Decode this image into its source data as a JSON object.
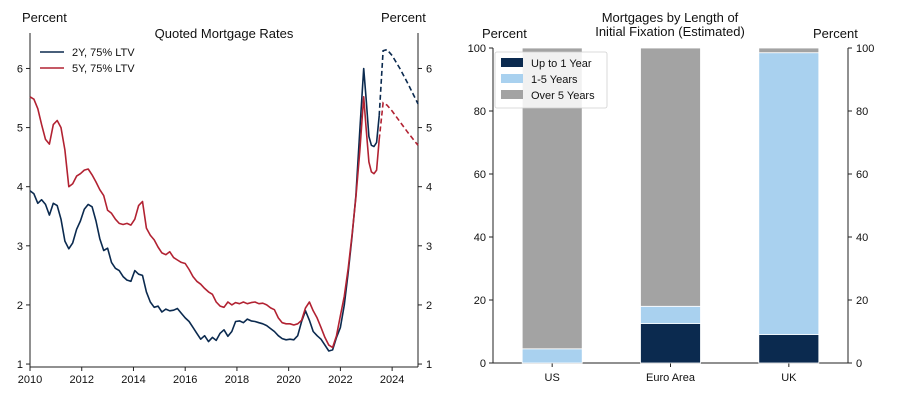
{
  "chart_data": [
    {
      "type": "line",
      "title": "Quoted Mortgage Rates",
      "ylabel_left": "Percent",
      "ylabel_right": "Percent",
      "xlim": [
        2010,
        2025
      ],
      "ylim": [
        0.95,
        6.6
      ],
      "xticks": [
        2010,
        2012,
        2014,
        2016,
        2018,
        2020,
        2022,
        2024
      ],
      "yticks": [
        1,
        2,
        3,
        4,
        5,
        6
      ],
      "legend_placement": "top-left",
      "series": [
        {
          "name": "2Y, 75% LTV",
          "color": "#0b2a4f",
          "x": [
            2010.0,
            2010.15,
            2010.3,
            2010.45,
            2010.6,
            2010.75,
            2010.9,
            2011.05,
            2011.2,
            2011.35,
            2011.5,
            2011.65,
            2011.8,
            2011.95,
            2012.1,
            2012.25,
            2012.4,
            2012.55,
            2012.7,
            2012.85,
            2013.0,
            2013.15,
            2013.3,
            2013.45,
            2013.6,
            2013.75,
            2013.9,
            2014.05,
            2014.2,
            2014.35,
            2014.5,
            2014.65,
            2014.8,
            2014.95,
            2015.1,
            2015.25,
            2015.4,
            2015.55,
            2015.7,
            2015.85,
            2016.0,
            2016.15,
            2016.3,
            2016.45,
            2016.6,
            2016.75,
            2016.9,
            2017.05,
            2017.2,
            2017.35,
            2017.5,
            2017.65,
            2017.8,
            2017.95,
            2018.1,
            2018.25,
            2018.4,
            2018.55,
            2018.7,
            2018.85,
            2019.0,
            2019.15,
            2019.3,
            2019.45,
            2019.6,
            2019.75,
            2019.9,
            2020.05,
            2020.2,
            2020.35,
            2020.5,
            2020.65,
            2020.8,
            2020.95,
            2021.1,
            2021.25,
            2021.4,
            2021.55,
            2021.7,
            2021.85,
            2022.0,
            2022.15,
            2022.3,
            2022.45,
            2022.6,
            2022.75,
            2022.9,
            2023.0,
            2023.1,
            2023.2,
            2023.3,
            2023.4,
            2023.5
          ],
          "values": [
            3.93,
            3.88,
            3.72,
            3.78,
            3.7,
            3.52,
            3.72,
            3.68,
            3.45,
            3.08,
            2.95,
            3.05,
            3.28,
            3.42,
            3.62,
            3.7,
            3.66,
            3.42,
            3.12,
            2.92,
            2.96,
            2.72,
            2.62,
            2.58,
            2.48,
            2.42,
            2.4,
            2.58,
            2.52,
            2.5,
            2.22,
            2.05,
            1.96,
            1.98,
            1.88,
            1.93,
            1.9,
            1.91,
            1.94,
            1.86,
            1.78,
            1.72,
            1.62,
            1.52,
            1.42,
            1.48,
            1.38,
            1.45,
            1.4,
            1.52,
            1.58,
            1.47,
            1.55,
            1.72,
            1.73,
            1.7,
            1.76,
            1.73,
            1.72,
            1.7,
            1.68,
            1.65,
            1.6,
            1.55,
            1.48,
            1.43,
            1.41,
            1.42,
            1.41,
            1.48,
            1.72,
            1.9,
            1.74,
            1.55,
            1.48,
            1.42,
            1.32,
            1.22,
            1.24,
            1.45,
            1.62,
            2.0,
            2.55,
            3.15,
            3.85,
            4.95,
            6.0,
            5.45,
            4.85,
            4.7,
            4.68,
            4.75,
            5.2
          ]
        },
        {
          "name": "5Y, 75% LTV",
          "color": "#b22232",
          "x": [
            2010.0,
            2010.15,
            2010.3,
            2010.45,
            2010.6,
            2010.75,
            2010.9,
            2011.05,
            2011.2,
            2011.35,
            2011.5,
            2011.65,
            2011.8,
            2011.95,
            2012.1,
            2012.25,
            2012.4,
            2012.55,
            2012.7,
            2012.85,
            2013.0,
            2013.15,
            2013.3,
            2013.45,
            2013.6,
            2013.75,
            2013.9,
            2014.05,
            2014.2,
            2014.35,
            2014.5,
            2014.65,
            2014.8,
            2014.95,
            2015.1,
            2015.25,
            2015.4,
            2015.55,
            2015.7,
            2015.85,
            2016.0,
            2016.15,
            2016.3,
            2016.45,
            2016.6,
            2016.75,
            2016.9,
            2017.05,
            2017.2,
            2017.35,
            2017.5,
            2017.65,
            2017.8,
            2017.95,
            2018.1,
            2018.25,
            2018.4,
            2018.55,
            2018.7,
            2018.85,
            2019.0,
            2019.15,
            2019.3,
            2019.45,
            2019.6,
            2019.75,
            2019.9,
            2020.05,
            2020.2,
            2020.35,
            2020.5,
            2020.65,
            2020.8,
            2020.95,
            2021.1,
            2021.25,
            2021.4,
            2021.55,
            2021.7,
            2021.85,
            2022.0,
            2022.15,
            2022.3,
            2022.45,
            2022.6,
            2022.75,
            2022.9,
            2023.0,
            2023.1,
            2023.2,
            2023.3,
            2023.4,
            2023.5
          ],
          "values": [
            5.52,
            5.48,
            5.32,
            5.05,
            4.8,
            4.72,
            5.05,
            5.12,
            5.0,
            4.62,
            4.0,
            4.05,
            4.18,
            4.22,
            4.28,
            4.3,
            4.2,
            4.08,
            3.95,
            3.85,
            3.6,
            3.55,
            3.45,
            3.38,
            3.36,
            3.38,
            3.35,
            3.45,
            3.68,
            3.75,
            3.3,
            3.18,
            3.1,
            2.98,
            2.88,
            2.85,
            2.9,
            2.8,
            2.76,
            2.72,
            2.7,
            2.6,
            2.48,
            2.4,
            2.35,
            2.28,
            2.22,
            2.18,
            2.05,
            1.98,
            1.96,
            2.05,
            2.0,
            2.04,
            2.02,
            2.05,
            2.02,
            2.04,
            2.05,
            2.02,
            2.03,
            2.0,
            1.95,
            1.92,
            1.78,
            1.7,
            1.68,
            1.68,
            1.66,
            1.68,
            1.74,
            1.95,
            2.05,
            1.9,
            1.78,
            1.62,
            1.45,
            1.32,
            1.28,
            1.48,
            1.82,
            2.15,
            2.62,
            3.18,
            3.82,
            4.6,
            5.52,
            4.95,
            4.42,
            4.25,
            4.22,
            4.28,
            4.8
          ]
        }
      ],
      "projections": [
        {
          "series": "2Y, 75% LTV",
          "x": [
            2023.5,
            2023.65,
            2023.8,
            2024.0,
            2024.3,
            2024.6,
            2025.0
          ],
          "values": [
            5.2,
            6.3,
            6.32,
            6.22,
            6.0,
            5.75,
            5.4
          ]
        },
        {
          "series": "5Y, 75% LTV",
          "x": [
            2023.5,
            2023.65,
            2023.8,
            2024.0,
            2024.3,
            2024.6,
            2025.0
          ],
          "values": [
            4.8,
            5.42,
            5.38,
            5.28,
            5.1,
            4.92,
            4.7
          ]
        }
      ]
    },
    {
      "type": "bar",
      "stacked": true,
      "title": "Mortgages by Length of Initial Fixation (Estimated)",
      "title_lines": [
        "Mortgages by Length of",
        "Initial Fixation (Estimated)"
      ],
      "ylabel_left": "Percent",
      "ylabel_right": "Percent",
      "ylim": [
        0,
        100
      ],
      "yticks": [
        0,
        20,
        40,
        60,
        80,
        100
      ],
      "categories": [
        "US",
        "Euro Area",
        "UK"
      ],
      "legend_placement": "top-left",
      "series": [
        {
          "name": "Up to 1 Year",
          "color": "#0b2a4f",
          "values": [
            0,
            12.5,
            9
          ]
        },
        {
          "name": "1-5 Years",
          "color": "#a9d1ef",
          "values": [
            4.5,
            5.5,
            89.5
          ]
        },
        {
          "name": "Over 5 Years",
          "color": "#a3a3a3",
          "values": [
            95.5,
            82,
            1.5
          ]
        }
      ]
    }
  ]
}
